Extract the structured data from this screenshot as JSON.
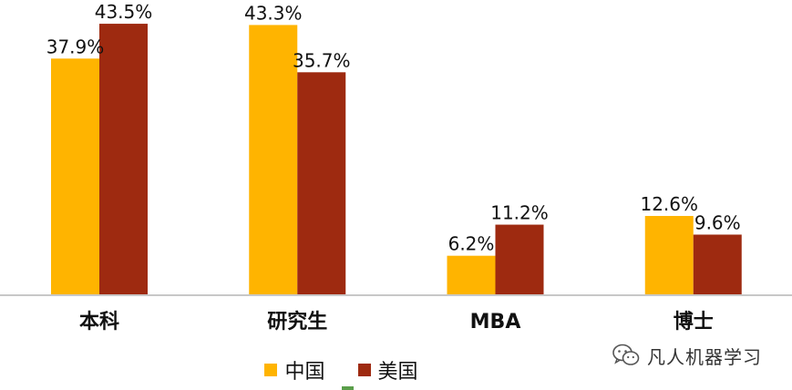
{
  "chart_data": {
    "type": "bar",
    "categories": [
      "本科",
      "研究生",
      "MBA",
      "博士"
    ],
    "series": [
      {
        "name": "中国",
        "values": [
          37.9,
          43.3,
          6.2,
          12.6
        ],
        "labels": [
          "37.9%",
          "43.3%",
          "6.2%",
          "12.6%"
        ],
        "color": "#FFB400"
      },
      {
        "name": "美国",
        "values": [
          43.5,
          35.7,
          11.2,
          9.6
        ],
        "labels": [
          "43.5%",
          "35.7%",
          "11.2%",
          "9.6%"
        ],
        "color": "#9E2A10"
      }
    ],
    "ylim": [
      0,
      46
    ],
    "grid": false,
    "legend": "bottom-center"
  },
  "watermark": {
    "text": "凡人机器学习",
    "icon": "wechat-icon"
  },
  "colors": {
    "axis": "#c8c8c8",
    "bottom_line": "#5a9e4a"
  }
}
